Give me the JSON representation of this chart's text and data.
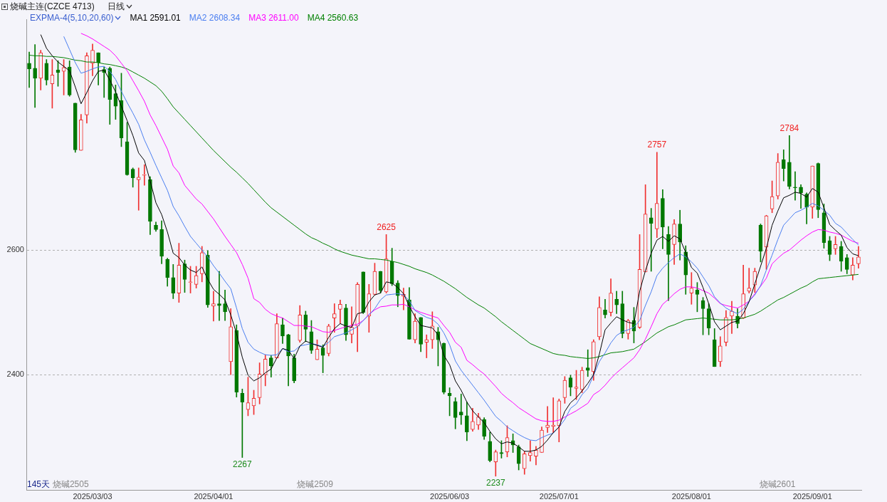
{
  "chart_data": {
    "type": "candlestick",
    "title": "烧碱主连(CZCE 4713)",
    "subtitle": "日线",
    "legend_title": "EXPMA-4(5,10,20,60)",
    "legend": "top left",
    "grid": "y",
    "marker": "none",
    "ylim": [
      2215,
      2970
    ],
    "yticks": [
      2400,
      2600
    ],
    "categories": [
      null,
      null,
      null,
      null,
      null,
      null,
      null,
      null,
      null,
      null,
      null,
      "2025/03/03",
      null,
      null,
      null,
      null,
      null,
      null,
      null,
      null,
      null,
      null,
      null,
      null,
      null,
      null,
      null,
      null,
      null,
      null,
      null,
      null,
      "2025/04/01",
      null,
      null,
      null,
      null,
      null,
      null,
      null,
      null,
      null,
      null,
      null,
      null,
      null,
      null,
      null,
      null,
      null,
      null,
      null,
      null,
      null,
      null,
      null,
      null,
      null,
      null,
      null,
      null,
      null,
      null,
      null,
      null,
      null,
      null,
      null,
      null,
      null,
      null,
      null,
      null,
      "2025/06/03",
      null,
      null,
      null,
      null,
      null,
      null,
      null,
      null,
      null,
      null,
      null,
      null,
      null,
      null,
      null,
      null,
      null,
      null,
      "2025/07/01",
      null,
      null,
      null,
      null,
      null,
      null,
      null,
      null,
      null,
      null,
      null,
      null,
      null,
      null,
      null,
      null,
      null,
      null,
      null,
      null,
      null,
      null,
      "2025/08/01",
      null,
      null,
      null,
      null,
      null,
      null,
      null,
      null,
      null,
      null,
      null,
      null,
      null,
      null,
      null,
      null,
      null,
      null,
      null,
      null,
      "2025/09/01",
      null,
      null,
      null,
      null,
      null,
      null,
      null,
      null
    ],
    "ohlc": [
      [
        2900,
        2918,
        2861,
        2891
      ],
      [
        2892,
        2930,
        2829,
        2876
      ],
      [
        2876,
        2921,
        2857,
        2917
      ],
      [
        2900,
        2906,
        2865,
        2873
      ],
      [
        2867,
        2906,
        2828,
        2881
      ],
      [
        2889,
        2904,
        2863,
        2885
      ],
      [
        2887,
        2906,
        2849,
        2893
      ],
      [
        2894,
        2904,
        2847,
        2849
      ],
      [
        2836,
        2836,
        2757,
        2761
      ],
      [
        2760,
        2818,
        2760,
        2809
      ],
      [
        2817,
        2917,
        2804,
        2912
      ],
      [
        2900,
        2931,
        2880,
        2921
      ],
      [
        2917,
        2917,
        2865,
        2901
      ],
      [
        2890,
        2894,
        2845,
        2885
      ],
      [
        2892,
        2894,
        2802,
        2842
      ],
      [
        2851,
        2865,
        2810,
        2831
      ],
      [
        2840,
        2884,
        2766,
        2780
      ],
      [
        2774,
        2805,
        2720,
        2721
      ],
      [
        2730,
        2732,
        2701,
        2716
      ],
      [
        2713,
        2732,
        2664,
        2717
      ],
      [
        2720,
        2737,
        2704,
        2720
      ],
      [
        2713,
        2718,
        2625,
        2646
      ],
      [
        2640,
        2645,
        2630,
        2633
      ],
      [
        2633,
        2647,
        2578,
        2590
      ],
      [
        2585,
        2587,
        2542,
        2556
      ],
      [
        2556,
        2577,
        2522,
        2531
      ],
      [
        2531,
        2611,
        2516,
        2576
      ],
      [
        2578,
        2584,
        2532,
        2553
      ],
      [
        2548,
        2574,
        2531,
        2549
      ],
      [
        2545,
        2574,
        2539,
        2559
      ],
      [
        2562,
        2606,
        2549,
        2596
      ],
      [
        2592,
        2599,
        2508,
        2512
      ],
      [
        2510,
        2534,
        2486,
        2514
      ],
      [
        2514,
        2566,
        2487,
        2511
      ],
      [
        2514,
        2536,
        2487,
        2501
      ],
      [
        2421,
        2506,
        2400,
        2477
      ],
      [
        2471,
        2480,
        2364,
        2372
      ],
      [
        2370,
        2377,
        2267,
        2356
      ],
      [
        2344,
        2396,
        2334,
        2355
      ],
      [
        2350,
        2375,
        2336,
        2362
      ],
      [
        2363,
        2419,
        2353,
        2401
      ],
      [
        2400,
        2432,
        2382,
        2425
      ],
      [
        2427,
        2431,
        2396,
        2414
      ],
      [
        2427,
        2498,
        2427,
        2482
      ],
      [
        2480,
        2491,
        2450,
        2462
      ],
      [
        2464,
        2465,
        2382,
        2430
      ],
      [
        2427,
        2433,
        2387,
        2390
      ],
      [
        2455,
        2511,
        2452,
        2496
      ],
      [
        2496,
        2502,
        2453,
        2473
      ],
      [
        2469,
        2487,
        2434,
        2439
      ],
      [
        2424,
        2456,
        2424,
        2441
      ],
      [
        2443,
        2448,
        2403,
        2431
      ],
      [
        2434,
        2481,
        2430,
        2478
      ],
      [
        2491,
        2514,
        2468,
        2498
      ],
      [
        2505,
        2520,
        2482,
        2513
      ],
      [
        2507,
        2513,
        2455,
        2464
      ],
      [
        2465,
        2509,
        2451,
        2476
      ],
      [
        2478,
        2548,
        2437,
        2545
      ],
      [
        2565,
        2565,
        2498,
        2500
      ],
      [
        2494,
        2545,
        2468,
        2530
      ],
      [
        2529,
        2579,
        2528,
        2566
      ],
      [
        2566,
        2566,
        2531,
        2535
      ],
      [
        2533,
        2625,
        2531,
        2586
      ],
      [
        2582,
        2603,
        2543,
        2546
      ],
      [
        2547,
        2551,
        2509,
        2527
      ],
      [
        2526,
        2539,
        2504,
        2529
      ],
      [
        2520,
        2540,
        2457,
        2457
      ],
      [
        2456,
        2498,
        2451,
        2486
      ],
      [
        2492,
        2492,
        2437,
        2449
      ],
      [
        2452,
        2464,
        2427,
        2456
      ],
      [
        2456,
        2501,
        2442,
        2478
      ],
      [
        2469,
        2476,
        2414,
        2456
      ],
      [
        2450,
        2451,
        2369,
        2372
      ],
      [
        2370,
        2379,
        2334,
        2366
      ],
      [
        2357,
        2363,
        2313,
        2331
      ],
      [
        2340,
        2369,
        2320,
        2335
      ],
      [
        2334,
        2356,
        2294,
        2308
      ],
      [
        2312,
        2346,
        2309,
        2325
      ],
      [
        2319,
        2338,
        2312,
        2332
      ],
      [
        2328,
        2331,
        2296,
        2301
      ],
      [
        2293,
        2308,
        2260,
        2262
      ],
      [
        2260,
        2279,
        2237,
        2276
      ],
      [
        2275,
        2294,
        2266,
        2273
      ],
      [
        2276,
        2318,
        2268,
        2299
      ],
      [
        2294,
        2305,
        2275,
        2287
      ],
      [
        2284,
        2287,
        2247,
        2257
      ],
      [
        2249,
        2277,
        2240,
        2273
      ],
      [
        2270,
        2294,
        2261,
        2275
      ],
      [
        2269,
        2285,
        2255,
        2279
      ],
      [
        2275,
        2316,
        2275,
        2311
      ],
      [
        2315,
        2349,
        2307,
        2319
      ],
      [
        2317,
        2363,
        2307,
        2319
      ],
      [
        2318,
        2361,
        2292,
        2358
      ],
      [
        2363,
        2397,
        2354,
        2391
      ],
      [
        2395,
        2399,
        2366,
        2380
      ],
      [
        2378,
        2407,
        2360,
        2380
      ],
      [
        2376,
        2412,
        2371,
        2407
      ],
      [
        2411,
        2440,
        2397,
        2407
      ],
      [
        2405,
        2456,
        2391,
        2453
      ],
      [
        2461,
        2525,
        2456,
        2508
      ],
      [
        2504,
        2521,
        2491,
        2496
      ],
      [
        2500,
        2554,
        2494,
        2531
      ],
      [
        2521,
        2534,
        2498,
        2512
      ],
      [
        2514,
        2534,
        2459,
        2466
      ],
      [
        2466,
        2489,
        2457,
        2487
      ],
      [
        2487,
        2508,
        2451,
        2470
      ],
      [
        2476,
        2625,
        2474,
        2569
      ],
      [
        2565,
        2705,
        2565,
        2658
      ],
      [
        2652,
        2667,
        2566,
        2643
      ],
      [
        2634,
        2757,
        2620,
        2675
      ],
      [
        2683,
        2697,
        2602,
        2637
      ],
      [
        2625,
        2638,
        2519,
        2593
      ],
      [
        2609,
        2649,
        2577,
        2642
      ],
      [
        2642,
        2664,
        2584,
        2613
      ],
      [
        2597,
        2607,
        2529,
        2560
      ],
      [
        2531,
        2564,
        2513,
        2539
      ],
      [
        2536,
        2548,
        2501,
        2529
      ],
      [
        2519,
        2524,
        2464,
        2506
      ],
      [
        2506,
        2514,
        2464,
        2475
      ],
      [
        2456,
        2474,
        2413,
        2413
      ],
      [
        2421,
        2461,
        2413,
        2446
      ],
      [
        2452,
        2503,
        2446,
        2492
      ],
      [
        2494,
        2518,
        2466,
        2502
      ],
      [
        2494,
        2506,
        2475,
        2482
      ],
      [
        2491,
        2576,
        2490,
        2530
      ],
      [
        2534,
        2571,
        2531,
        2539
      ],
      [
        2544,
        2571,
        2532,
        2566
      ],
      [
        2640,
        2642,
        2581,
        2598
      ],
      [
        2605,
        2656,
        2569,
        2655
      ],
      [
        2666,
        2711,
        2660,
        2686
      ],
      [
        2687,
        2755,
        2682,
        2741
      ],
      [
        2745,
        2761,
        2711,
        2731
      ],
      [
        2741,
        2784,
        2698,
        2702
      ],
      [
        2701,
        2726,
        2680,
        2700
      ],
      [
        2701,
        2705,
        2667,
        2692
      ],
      [
        2690,
        2692,
        2642,
        2669
      ],
      [
        2669,
        2735,
        2651,
        2735
      ],
      [
        2739,
        2740,
        2652,
        2665
      ],
      [
        2660,
        2674,
        2603,
        2612
      ],
      [
        2615,
        2622,
        2583,
        2593
      ],
      [
        2602,
        2622,
        2593,
        2609
      ],
      [
        2606,
        2614,
        2566,
        2582
      ],
      [
        2588,
        2593,
        2562,
        2569
      ],
      [
        2560,
        2588,
        2552,
        2576
      ],
      [
        2578,
        2606,
        2571,
        2589
      ]
    ],
    "series": [
      {
        "name": "MA1 2591.01",
        "type": "line",
        "color": "#000000",
        "values": [
          null,
          null,
          2946,
          2924,
          2912,
          2902,
          2895,
          2888,
          2862,
          2835,
          2853,
          2872,
          2887,
          2889,
          2873,
          2854,
          2831,
          2808,
          2784,
          2756,
          2744,
          2711,
          2676,
          2657,
          2629,
          2595,
          2588,
          2576,
          2568,
          2564,
          2573,
          2553,
          2537,
          2529,
          2520,
          2496,
          2466,
          2428,
          2399,
          2390,
          2395,
          2403,
          2409,
          2427,
          2442,
          2439,
          2426,
          2446,
          2454,
          2450,
          2447,
          2444,
          2460,
          2474,
          2482,
          2478,
          2476,
          2498,
          2500,
          2517,
          2528,
          2531,
          2549,
          2547,
          2540,
          2530,
          2510,
          2493,
          2479,
          2477,
          2475,
          2464,
          2431,
          2416,
          2390,
          2375,
          2356,
          2342,
          2332,
          2323,
          2309,
          2297,
          2289,
          2292,
          2290,
          2284,
          2277,
          2277,
          2279,
          2285,
          2295,
          2307,
          2316,
          2341,
          2355,
          2363,
          2374,
          2386,
          2400,
          2433,
          2472,
          2483,
          2493,
          2488,
          2484,
          2482,
          2534,
          2567,
          2595,
          2616,
          2622,
          2614,
          2623,
          2618,
          2596,
          2572,
          2563,
          2540,
          2514,
          2485,
          2472,
          2478,
          2484,
          2486,
          2498,
          2517,
          2546,
          2574,
          2603,
          2640,
          2663,
          2684,
          2688,
          2693,
          2691,
          2685,
          2699,
          2693,
          2668,
          2641,
          2632,
          2624,
          2604,
          2594,
          2591
        ]
      },
      {
        "name": "MA2 2608.34",
        "type": "line",
        "color": "#4a7ef0",
        "values": [
          null,
          null,
          null,
          null,
          null,
          null,
          2943,
          2922,
          2901,
          2884,
          2887,
          2891,
          2894,
          2895,
          2887,
          2874,
          2855,
          2837,
          2820,
          2802,
          2777,
          2757,
          2736,
          2716,
          2696,
          2670,
          2655,
          2638,
          2622,
          2611,
          2600,
          2589,
          2575,
          2563,
          2550,
          2538,
          2507,
          2474,
          2452,
          2441,
          2436,
          2432,
          2431,
          2432,
          2442,
          2437,
          2438,
          2446,
          2448,
          2450,
          2448,
          2445,
          2452,
          2461,
          2464,
          2467,
          2472,
          2477,
          2487,
          2496,
          2506,
          2520,
          2528,
          2529,
          2530,
          2528,
          2519,
          2503,
          2497,
          2492,
          2489,
          2481,
          2467,
          2448,
          2422,
          2407,
          2395,
          2383,
          2371,
          2359,
          2346,
          2333,
          2325,
          2316,
          2310,
          2304,
          2299,
          2295,
          2294,
          2299,
          2303,
          2306,
          2316,
          2328,
          2346,
          2353,
          2368,
          2378,
          2399,
          2421,
          2435,
          2451,
          2463,
          2469,
          2472,
          2476,
          2487,
          2511,
          2533,
          2559,
          2571,
          2580,
          2588,
          2594,
          2589,
          2581,
          2571,
          2557,
          2543,
          2525,
          2515,
          2507,
          2502,
          2498,
          2505,
          2518,
          2528,
          2543,
          2568,
          2592,
          2617,
          2640,
          2650,
          2660,
          2664,
          2669,
          2675,
          2671,
          2664,
          2656,
          2643,
          2637,
          2627,
          2617,
          2608
        ]
      },
      {
        "name": "MA3 2611.00",
        "type": "line",
        "color": "#ff00ff",
        "values": [
          null,
          null,
          null,
          null,
          null,
          null,
          null,
          null,
          null,
          2948,
          2944,
          2939,
          2933,
          2927,
          2921,
          2912,
          2900,
          2888,
          2872,
          2856,
          2839,
          2817,
          2800,
          2781,
          2762,
          2735,
          2724,
          2704,
          2693,
          2682,
          2674,
          2662,
          2650,
          2636,
          2622,
          2609,
          2596,
          2577,
          2555,
          2522,
          2516,
          2505,
          2498,
          2494,
          2491,
          2485,
          2479,
          2479,
          2478,
          2477,
          2473,
          2469,
          2468,
          2471,
          2474,
          2477,
          2479,
          2481,
          2487,
          2497,
          2504,
          2509,
          2510,
          2512,
          2512,
          2513,
          2509,
          2504,
          2500,
          2497,
          2494,
          2491,
          2479,
          2468,
          2452,
          2444,
          2423,
          2416,
          2408,
          2401,
          2391,
          2381,
          2370,
          2362,
          2355,
          2347,
          2341,
          2335,
          2329,
          2326,
          2325,
          2325,
          2327,
          2332,
          2337,
          2342,
          2348,
          2354,
          2368,
          2374,
          2383,
          2394,
          2403,
          2411,
          2419,
          2427,
          2440,
          2457,
          2477,
          2498,
          2513,
          2521,
          2530,
          2537,
          2541,
          2541,
          2539,
          2535,
          2531,
          2523,
          2514,
          2511,
          2509,
          2507,
          2512,
          2518,
          2530,
          2542,
          2555,
          2578,
          2587,
          2595,
          2600,
          2608,
          2616,
          2623,
          2629,
          2633,
          2632,
          2629,
          2627,
          2624,
          2619,
          2614,
          2611
        ]
      },
      {
        "name": "MA4 2560.63",
        "type": "line",
        "color": "#008000",
        "values": [
          2913,
          2912,
          2912,
          2911,
          2911,
          2910,
          2909,
          2907,
          2905,
          2904,
          2902,
          2902,
          2901,
          2899,
          2898,
          2896,
          2894,
          2891,
          2886,
          2881,
          2876,
          2870,
          2864,
          2855,
          2843,
          2830,
          2820,
          2810,
          2800,
          2790,
          2780,
          2770,
          2760,
          2751,
          2742,
          2733,
          2725,
          2716,
          2707,
          2697,
          2687,
          2677,
          2668,
          2661,
          2654,
          2647,
          2640,
          2633,
          2626,
          2620,
          2616,
          2611,
          2607,
          2602,
          2598,
          2595,
          2592,
          2590,
          2588,
          2586,
          2586,
          2585,
          2584,
          2582,
          2580,
          2577,
          2574,
          2570,
          2567,
          2564,
          2560,
          2555,
          2550,
          2544,
          2538,
          2531,
          2524,
          2518,
          2512,
          2507,
          2500,
          2493,
          2485,
          2478,
          2471,
          2464,
          2457,
          2450,
          2446,
          2442,
          2438,
          2434,
          2432,
          2431,
          2429,
          2428,
          2427,
          2426,
          2427,
          2429,
          2432,
          2435,
          2436,
          2437,
          2439,
          2441,
          2447,
          2453,
          2460,
          2467,
          2472,
          2477,
          2480,
          2484,
          2488,
          2489,
          2490,
          2491,
          2490,
          2489,
          2488,
          2488,
          2488,
          2489,
          2491,
          2494,
          2497,
          2502,
          2508,
          2514,
          2520,
          2524,
          2529,
          2534,
          2539,
          2543,
          2549,
          2554,
          2555,
          2556,
          2557,
          2558,
          2559,
          2560,
          2561
        ]
      }
    ],
    "annotations": [
      {
        "text": "2625",
        "y": 2625
      },
      {
        "text": "2267",
        "y": 2267
      },
      {
        "text": "2237",
        "y": 2237
      },
      {
        "text": "2757",
        "y": 2757
      },
      {
        "text": "2784",
        "y": 2784
      },
      "145天",
      "烧碱2505",
      "烧碱2509",
      "烧碱2601"
    ]
  }
}
